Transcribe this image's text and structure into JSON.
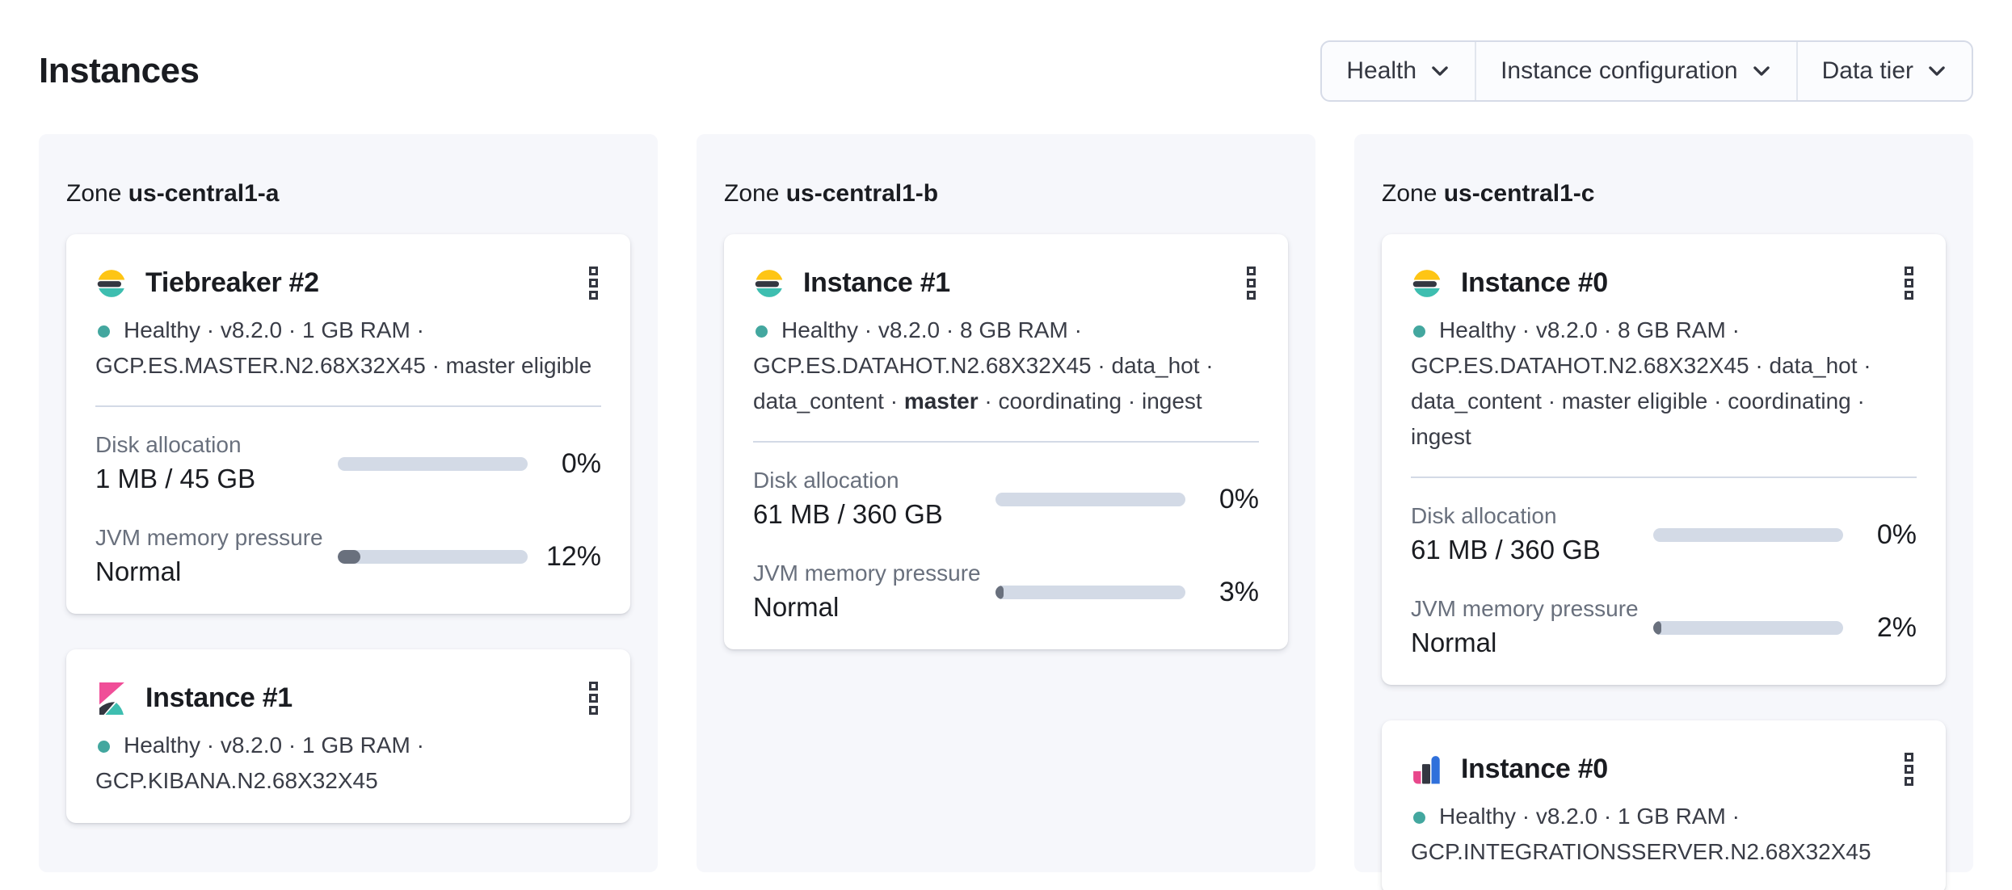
{
  "page": {
    "title": "Instances"
  },
  "filters": [
    {
      "label": "Health"
    },
    {
      "label": "Instance configuration"
    },
    {
      "label": "Data tier"
    }
  ],
  "zones": [
    {
      "zone_label": "Zone",
      "name": "us-central1-a",
      "cards": [
        {
          "logo": "elasticsearch",
          "title": "Tiebreaker #2",
          "status_line_1": "Healthy · v8.2.0 · 1 GB RAM ·",
          "status_line_2": "GCP.ES.MASTER.N2.68X32X45 · master eligible",
          "disk": {
            "label": "Disk allocation",
            "value": "1 MB / 45 GB",
            "pct": "0%",
            "fill_pct": 0
          },
          "jvm": {
            "label": "JVM memory pressure",
            "value": "Normal",
            "pct": "12%",
            "fill_pct": 12
          }
        },
        {
          "logo": "kibana",
          "title": "Instance #1",
          "status_line_1": "Healthy · v8.2.0 · 1 GB RAM ·",
          "status_line_2": "GCP.KIBANA.N2.68X32X45"
        }
      ]
    },
    {
      "zone_label": "Zone",
      "name": "us-central1-b",
      "cards": [
        {
          "logo": "elasticsearch",
          "title": "Instance #1",
          "status_line_1": "Healthy · v8.2.0 · 8 GB RAM ·",
          "status_line_2": "GCP.ES.DATAHOT.N2.68X32X45 · data_hot ·",
          "status_line_3_pre": "data_content · ",
          "status_line_3_bold": "master",
          "status_line_3_post": " · coordinating · ingest",
          "disk": {
            "label": "Disk allocation",
            "value": "61 MB / 360 GB",
            "pct": "0%",
            "fill_pct": 0
          },
          "jvm": {
            "label": "JVM memory pressure",
            "value": "Normal",
            "pct": "3%",
            "fill_pct": 3
          }
        }
      ]
    },
    {
      "zone_label": "Zone",
      "name": "us-central1-c",
      "cards": [
        {
          "logo": "elasticsearch",
          "title": "Instance #0",
          "status_line_1": "Healthy · v8.2.0 · 8 GB RAM ·",
          "status_line_2": "GCP.ES.DATAHOT.N2.68X32X45 · data_hot ·",
          "status_line_3": "data_content · master eligible · coordinating · ingest",
          "disk": {
            "label": "Disk allocation",
            "value": "61 MB / 360 GB",
            "pct": "0%",
            "fill_pct": 0
          },
          "jvm": {
            "label": "JVM memory pressure",
            "value": "Normal",
            "pct": "2%",
            "fill_pct": 2
          }
        },
        {
          "logo": "integrations-server",
          "title": "Instance #0",
          "status_line_1": "Healthy · v8.2.0 · 1 GB RAM ·",
          "status_line_2": "GCP.INTEGRATIONSSERVER.N2.68X32X45"
        }
      ]
    }
  ],
  "colors": {
    "health_teal": "#43a79f",
    "es_yellow": "#fec514",
    "brand_dark": "#343741",
    "brand_teal": "#3ebeb0",
    "kibana_pink": "#f04e98",
    "integrations_pink": "#e8478b",
    "integrations_blue": "#2f70db",
    "bar_track": "#d3dae6",
    "bar_fill": "#69707d",
    "panel_bg": "#f6f7fb"
  }
}
